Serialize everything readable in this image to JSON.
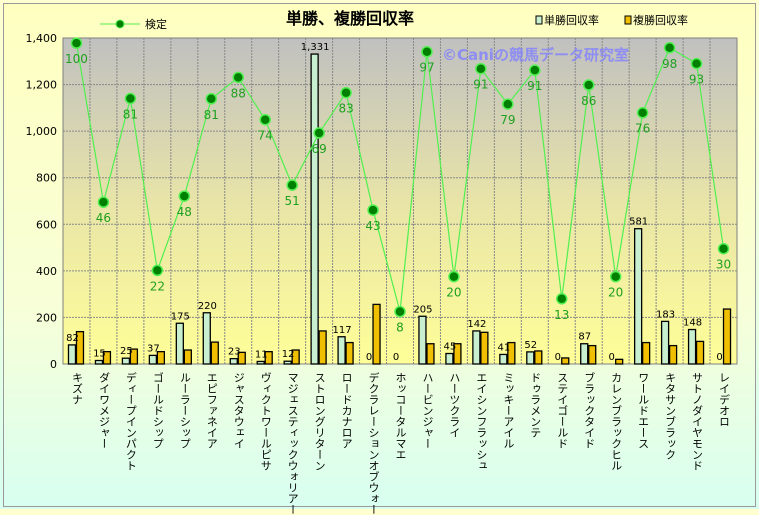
{
  "chart_data": {
    "type": "bar+line",
    "title": "単勝、複勝回収率",
    "watermark": "©Caniの競馬データ研究室",
    "ylim": [
      0,
      1400
    ],
    "yticks": [
      "0",
      "200",
      "400",
      "600",
      "800",
      "1,000",
      "1,200",
      "1,400"
    ],
    "ytick_values": [
      0,
      200,
      400,
      600,
      800,
      1000,
      1200,
      1400
    ],
    "grid": true,
    "legend": {
      "placement": "top",
      "line": "検定",
      "bar1": "単勝回収率",
      "bar2": "複勝回収率"
    },
    "categories": [
      "キズナ",
      "ダイワメジャー",
      "ディープインパクト",
      "ゴールドシップ",
      "ルーラーシップ",
      "エピファネイア",
      "ジャスタウェイ",
      "ヴィクトワールピサ",
      "マジェスティックウォリアー",
      "ストロングリターン",
      "ロードカナロア",
      "デクラレーションオブウォー",
      "ホッコータルマエ",
      "ハービンジャー",
      "ハーツクライ",
      "エイシンフラッシュ",
      "ミッキーアイル",
      "ドゥラメンテ",
      "ステイゴールド",
      "ブラックタイド",
      "カレンブラックヒル",
      "ワールドエース",
      "キタサンブラック",
      "サトノダイヤモンド",
      "レイデオロ"
    ],
    "series": [
      {
        "name": "単勝回収率",
        "type": "bar",
        "color": "#c8f0d0",
        "values": [
          82,
          15,
          25,
          37,
          175,
          220,
          23,
          11,
          12,
          1331,
          117,
          0,
          0,
          205,
          45,
          142,
          41,
          52,
          0,
          87,
          0,
          581,
          183,
          148,
          0
        ],
        "labels": [
          "82",
          "15",
          "25",
          "37",
          "175",
          "220",
          "23",
          "11",
          "12",
          "1,331",
          "117",
          "0",
          "0",
          "205",
          "45",
          "142",
          "41",
          "52",
          "0",
          "87",
          "0",
          "581",
          "183",
          "148",
          "0"
        ]
      },
      {
        "name": "複勝回収率",
        "type": "bar",
        "color": "#f0c000",
        "values": [
          139,
          53,
          64,
          53,
          60,
          94,
          50,
          53,
          60,
          142,
          92,
          256,
          0,
          87,
          87,
          136,
          92,
          56,
          26,
          79,
          20,
          92,
          79,
          97,
          236
        ]
      },
      {
        "name": "検定",
        "type": "line",
        "color": "#50f050",
        "marker": "#008000",
        "labels": [
          "100",
          "46",
          "81",
          "22",
          "48",
          "81",
          "88",
          "74",
          "51",
          "69",
          "83",
          "43",
          "8",
          "97",
          "20",
          "91",
          "79",
          "91",
          "13",
          "86",
          "20",
          "76",
          "98",
          "93",
          "30"
        ],
        "values": [
          1378,
          695,
          1140,
          402,
          721,
          1139,
          1231,
          1049,
          768,
          992,
          1165,
          661,
          225,
          1341,
          375,
          1268,
          1116,
          1262,
          280,
          1198,
          375,
          1079,
          1358,
          1290,
          495
        ]
      }
    ]
  }
}
